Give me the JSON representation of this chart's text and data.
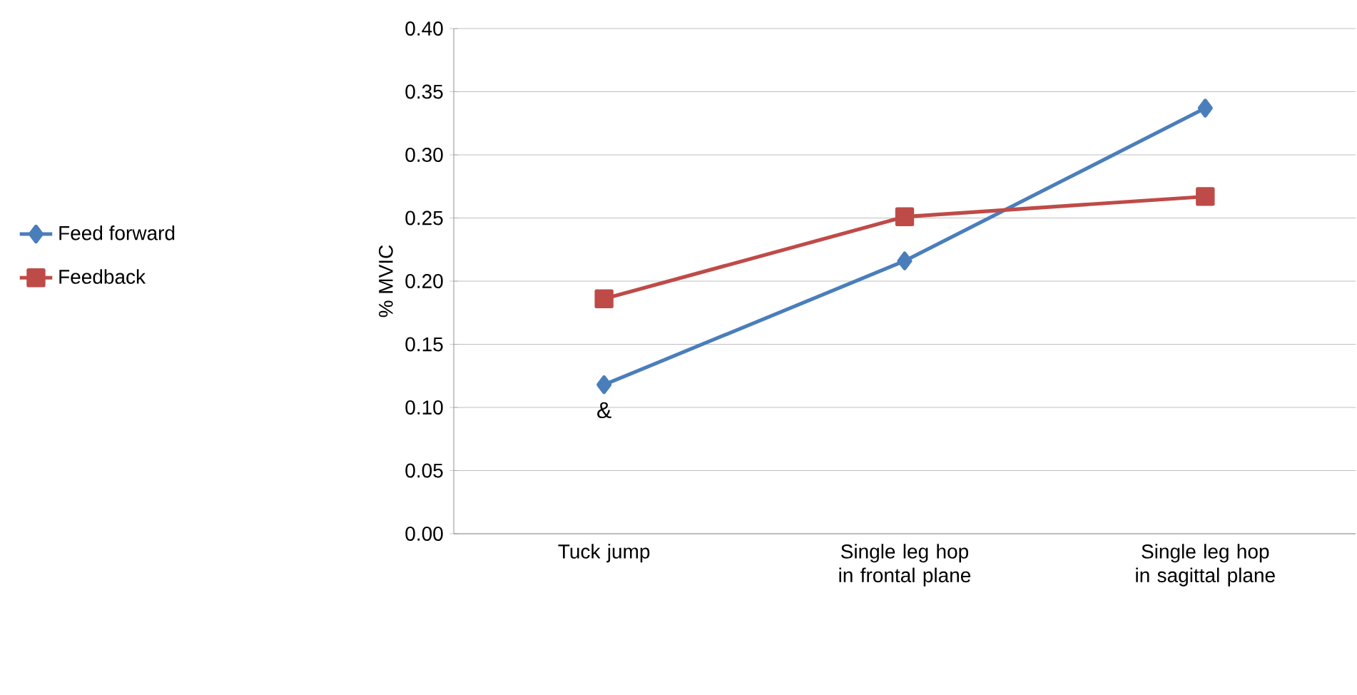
{
  "chart_data": {
    "type": "line",
    "ylabel": "% MVIC",
    "categories": [
      "Tuck jump",
      "Single leg hop in frontal plane",
      "Single leg hop in sagittal plane"
    ],
    "series": [
      {
        "name": "Feed forward",
        "color": "#4a7ebb",
        "marker": "diamond",
        "values": [
          0.118,
          0.216,
          0.337
        ]
      },
      {
        "name": "Feedback",
        "color": "#be4b48",
        "marker": "square",
        "values": [
          0.186,
          0.251,
          0.267
        ]
      }
    ],
    "ylim": [
      0,
      0.4
    ],
    "yticks": [
      {
        "value": 0,
        "label": "0.00"
      },
      {
        "value": 0.05,
        "label": "0.05"
      },
      {
        "value": 0.1,
        "label": "0.10"
      },
      {
        "value": 0.15,
        "label": "0.15"
      },
      {
        "value": 0.2,
        "label": "0.20"
      },
      {
        "value": 0.25,
        "label": "0.25"
      },
      {
        "value": 0.3,
        "label": "0.30"
      },
      {
        "value": 0.35,
        "label": "0.35"
      },
      {
        "value": 0.4,
        "label": "0.40"
      }
    ],
    "grid": "y",
    "legend": "left",
    "annotations": [
      "&"
    ]
  }
}
